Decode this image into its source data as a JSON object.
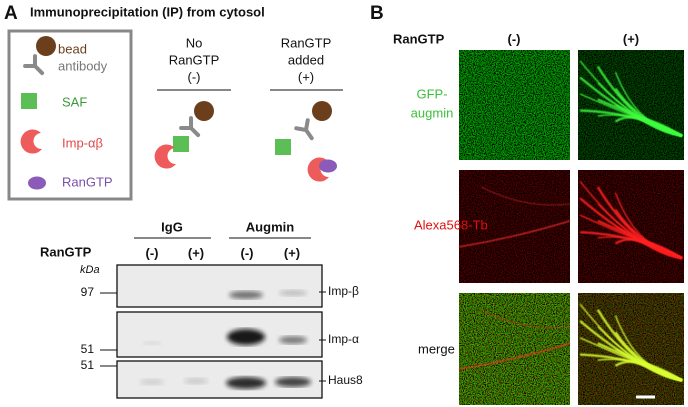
{
  "panel_a": {
    "label": "A",
    "title": "Immunoprecipitation (IP) from cytosol",
    "legend": {
      "bead": "bead",
      "antibody": "antibody",
      "saf": "SAF",
      "imp": "Imp-αβ",
      "ran": "RanGTP"
    },
    "conditions": [
      {
        "lines": [
          "No",
          "RanGTP",
          "(-)"
        ]
      },
      {
        "lines": [
          "RanGTP",
          "added",
          "(+)"
        ]
      }
    ],
    "blot": {
      "row_header": "RanGTP",
      "groups": [
        "IgG",
        "Augmin"
      ],
      "lanes": [
        "(-)",
        "(+)",
        "(-)",
        "(+)"
      ],
      "unit": "kDa",
      "markers": [
        97,
        51,
        51
      ],
      "proteins": [
        "Imp-β",
        "Imp-α",
        "Haus8"
      ]
    }
  },
  "panel_b": {
    "label": "B",
    "column_header": "RanGTP",
    "columns": [
      "(-)",
      "(+)"
    ],
    "rows": [
      {
        "lines": [
          "GFP-",
          "augmin"
        ]
      },
      {
        "lines": [
          "Alexa568-Tb"
        ]
      },
      {
        "lines": [
          "merge"
        ]
      }
    ]
  }
}
